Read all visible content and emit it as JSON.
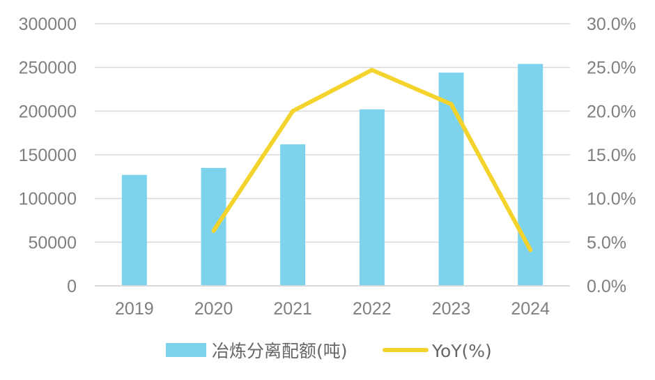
{
  "chart_data": {
    "type": "bar",
    "categories": [
      "2019",
      "2020",
      "2021",
      "2022",
      "2023",
      "2024"
    ],
    "series": [
      {
        "name": "冶炼分离配额(吨)",
        "type": "bar",
        "axis": "left",
        "color": "#7dd3eb",
        "values": [
          127000,
          135000,
          162000,
          202000,
          244000,
          254000
        ]
      },
      {
        "name": "YoY(%)",
        "type": "line",
        "axis": "right",
        "color": "#f4d32d",
        "values": [
          null,
          6.3,
          20.0,
          24.7,
          20.8,
          4.1
        ]
      }
    ],
    "y_left": {
      "min": 0,
      "max": 300000,
      "ticks": [
        "0",
        "50000",
        "100000",
        "150000",
        "200000",
        "250000",
        "300000"
      ]
    },
    "y_right": {
      "min": 0,
      "max": 30,
      "ticks": [
        "0.0%",
        "5.0%",
        "10.0%",
        "15.0%",
        "20.0%",
        "25.0%",
        "30.0%"
      ]
    },
    "grid": true,
    "legend": "bottom"
  }
}
